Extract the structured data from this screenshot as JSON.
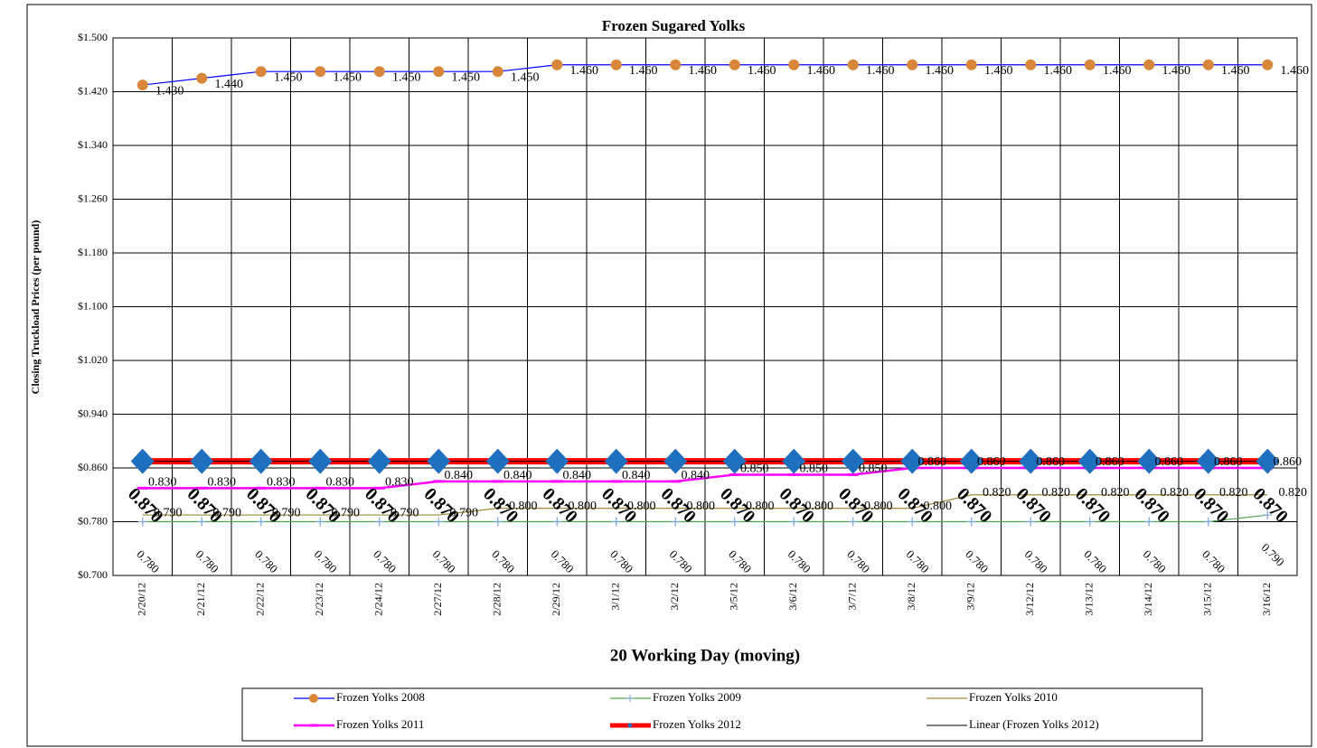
{
  "chart_data": {
    "type": "line",
    "title": "Frozen Sugared Yolks",
    "x_label": "20 Working Day (moving)",
    "y_label": "Closing Truckload Prices (per pound)",
    "categories": [
      "2/20/12",
      "2/21/12",
      "2/22/12",
      "2/23/12",
      "2/24/12",
      "2/27/12",
      "2/28/12",
      "2/29/12",
      "3/1/12",
      "3/2/12",
      "3/5/12",
      "3/6/12",
      "3/7/12",
      "3/8/12",
      "3/9/12",
      "3/12/12",
      "3/13/12",
      "3/14/12",
      "3/15/12",
      "3/16/12"
    ],
    "ylim": [
      0.7,
      1.5
    ],
    "yticks": [
      {
        "value": 0.7,
        "label": "$0.700"
      },
      {
        "value": 0.78,
        "label": "$0.780"
      },
      {
        "value": 0.86,
        "label": "$0.860"
      },
      {
        "value": 0.94,
        "label": "$0.940"
      },
      {
        "value": 1.02,
        "label": "$1.020"
      },
      {
        "value": 1.1,
        "label": "$1.100"
      },
      {
        "value": 1.18,
        "label": "$1.180"
      },
      {
        "value": 1.26,
        "label": "$1.260"
      },
      {
        "value": 1.34,
        "label": "$1.340"
      },
      {
        "value": 1.42,
        "label": "$1.420"
      },
      {
        "value": 1.5,
        "label": "$1.500"
      }
    ],
    "grid": true,
    "series": [
      {
        "name": "Frozen Yolks 2008",
        "color": "#0000ff",
        "marker": "circle",
        "marker_color": "#d8873a",
        "values": [
          1.43,
          1.44,
          1.45,
          1.45,
          1.45,
          1.45,
          1.45,
          1.46,
          1.46,
          1.46,
          1.46,
          1.46,
          1.46,
          1.46,
          1.46,
          1.46,
          1.46,
          1.46,
          1.46,
          1.46
        ],
        "value_labels": [
          "1.430",
          "1.440",
          "1.450",
          "1.450",
          "1.450",
          "1.450",
          "1.450",
          "1.460",
          "1.460",
          "1.460",
          "1.460",
          "1.460",
          "1.460",
          "1.460",
          "1.460",
          "1.460",
          "1.460",
          "1.460",
          "1.460",
          "1.460"
        ]
      },
      {
        "name": "Frozen Yolks 2009",
        "color": "#4aa84a",
        "marker": "plus",
        "marker_color": "#7fa6d8",
        "values": [
          0.78,
          0.78,
          0.78,
          0.78,
          0.78,
          0.78,
          0.78,
          0.78,
          0.78,
          0.78,
          0.78,
          0.78,
          0.78,
          0.78,
          0.78,
          0.78,
          0.78,
          0.78,
          0.78,
          0.79
        ],
        "value_labels": [
          "0.780",
          "0.780",
          "0.780",
          "0.780",
          "0.780",
          "0.780",
          "0.780",
          "0.780",
          "0.780",
          "0.780",
          "0.780",
          "0.780",
          "0.780",
          "0.780",
          "0.780",
          "0.780",
          "0.780",
          "0.780",
          "0.780",
          "0.790"
        ]
      },
      {
        "name": "Frozen Yolks 2010",
        "color": "#a08a3a",
        "marker": "none",
        "marker_color": "#a08a3a",
        "values": [
          0.79,
          0.79,
          0.79,
          0.79,
          0.79,
          0.79,
          0.8,
          0.8,
          0.8,
          0.8,
          0.8,
          0.8,
          0.8,
          0.8,
          0.82,
          0.82,
          0.82,
          0.82,
          0.82,
          0.82
        ],
        "value_labels": [
          "0.790",
          "0.790",
          "0.790",
          "0.790",
          "0.790",
          "0.790",
          "0.800",
          "0.800",
          "0.800",
          "0.800",
          "0.800",
          "0.800",
          "0.800",
          "0.800",
          "0.820",
          "0.820",
          "0.820",
          "0.820",
          "0.820",
          "0.820"
        ]
      },
      {
        "name": "Frozen Yolks 2011",
        "color": "#ff00ff",
        "marker": "dash",
        "marker_color": "#ff00ff",
        "values": [
          0.83,
          0.83,
          0.83,
          0.83,
          0.83,
          0.84,
          0.84,
          0.84,
          0.84,
          0.84,
          0.85,
          0.85,
          0.85,
          0.86,
          0.86,
          0.86,
          0.86,
          0.86,
          0.86,
          0.86
        ],
        "value_labels": [
          "0.830",
          "0.830",
          "0.830",
          "0.830",
          "0.830",
          "0.840",
          "0.840",
          "0.840",
          "0.840",
          "0.840",
          "0.850",
          "0.850",
          "0.850",
          "0.860",
          "0.860",
          "0.860",
          "0.860",
          "0.860",
          "0.860",
          "0.860"
        ]
      },
      {
        "name": "Frozen Yolks 2012",
        "color": "#ff0000",
        "marker": "diamond",
        "marker_color": "#1f6fbf",
        "values": [
          0.87,
          0.87,
          0.87,
          0.87,
          0.87,
          0.87,
          0.87,
          0.87,
          0.87,
          0.87,
          0.87,
          0.87,
          0.87,
          0.87,
          0.87,
          0.87,
          0.87,
          0.87,
          0.87,
          0.87
        ],
        "value_labels": [
          "0.870",
          "0.870",
          "0.870",
          "0.870",
          "0.870",
          "0.870",
          "0.870",
          "0.870",
          "0.870",
          "0.870",
          "0.870",
          "0.870",
          "0.870",
          "0.870",
          "0.870",
          "0.870",
          "0.870",
          "0.870",
          "0.870",
          "0.870"
        ],
        "trendline": {
          "name": "Linear (Frozen Yolks 2012)",
          "color": "#000000"
        }
      }
    ]
  }
}
